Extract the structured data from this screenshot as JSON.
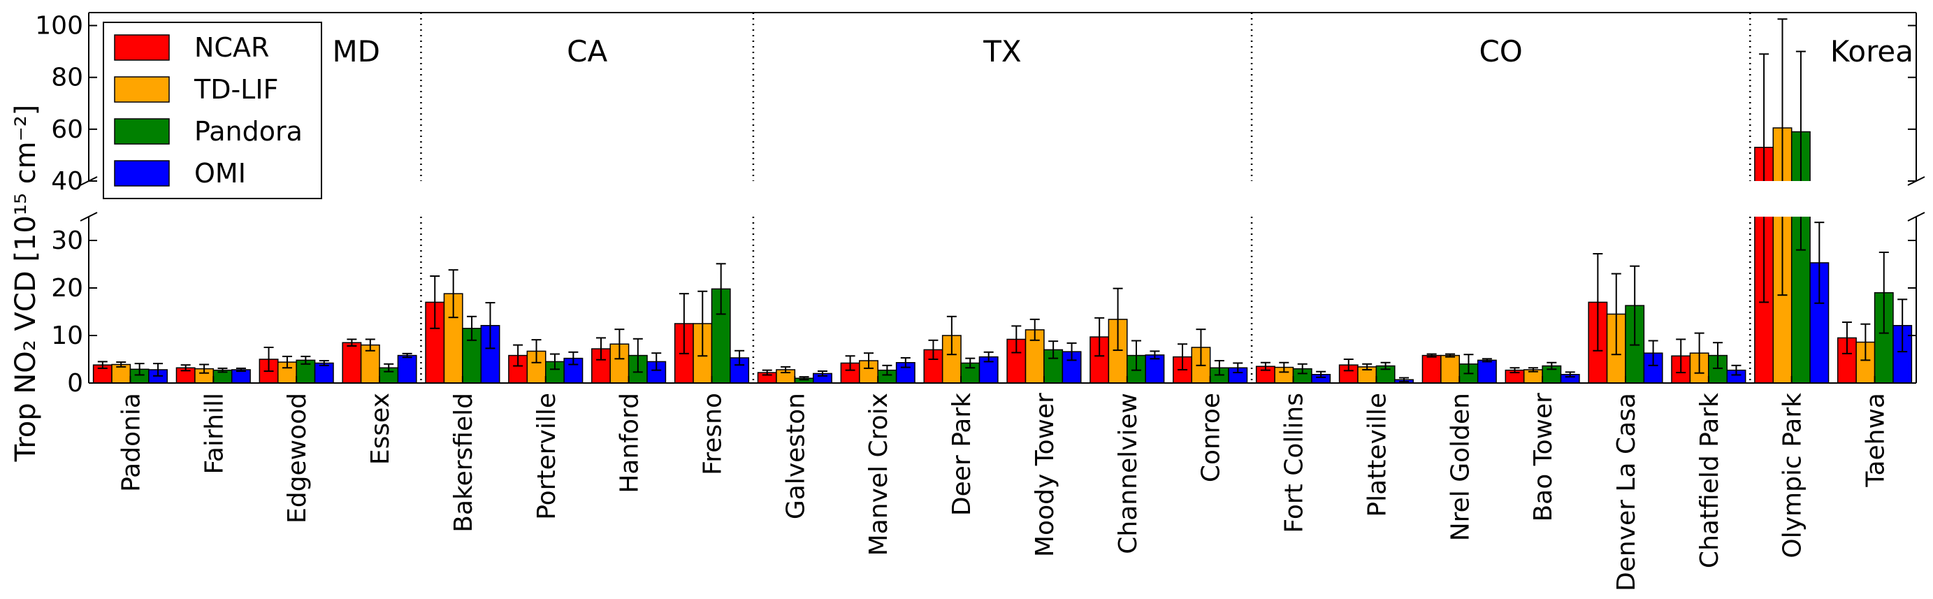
{
  "chart_data": {
    "type": "bar",
    "ylabel": "Trop NO₂ VCD [10¹⁵ cm⁻²]",
    "ylim_lower": [
      0,
      35
    ],
    "ylim_upper": [
      40,
      105
    ],
    "yticks_lower": [
      "0",
      "10",
      "20",
      "30"
    ],
    "yticks_upper": [
      "40",
      "60",
      "80",
      "100"
    ],
    "legend_position": "top-left",
    "regions": [
      {
        "label": "MD",
        "start": 0,
        "end": 4
      },
      {
        "label": "CA",
        "start": 4,
        "end": 8
      },
      {
        "label": "TX",
        "start": 8,
        "end": 14
      },
      {
        "label": "CO",
        "start": 14,
        "end": 20
      },
      {
        "label": "Korea",
        "start": 20,
        "end": 22
      }
    ],
    "categories": [
      "Padonia",
      "Fairhill",
      "Edgewood",
      "Essex",
      "Bakersfield",
      "Porterville",
      "Hanford",
      "Fresno",
      "Galveston",
      "Manvel Croix",
      "Deer Park",
      "Moody Tower",
      "Channelview",
      "Conroe",
      "Fort Collins",
      "Platteville",
      "Nrel Golden",
      "Bao Tower",
      "Denver La Casa",
      "Chatfield Park",
      "Olympic Park",
      "Taehwa"
    ],
    "series": [
      {
        "name": "NCAR",
        "color": "#ff0000",
        "values": [
          3.8,
          3.2,
          5.0,
          8.5,
          17.0,
          5.8,
          7.2,
          12.5,
          2.2,
          4.2,
          7.0,
          9.2,
          9.7,
          5.5,
          3.5,
          3.8,
          5.8,
          2.7,
          17.0,
          5.7,
          53.0,
          9.5
        ],
        "errors": [
          0.7,
          0.6,
          2.5,
          0.7,
          5.5,
          2.2,
          2.3,
          6.3,
          0.5,
          1.5,
          2.0,
          2.8,
          4.0,
          2.7,
          0.8,
          1.2,
          0.3,
          0.5,
          10.2,
          3.5,
          36.0,
          3.3
        ]
      },
      {
        "name": "TD-LIF",
        "color": "#ffa500",
        "values": [
          3.9,
          3.0,
          4.4,
          8.0,
          18.8,
          6.7,
          8.2,
          12.5,
          2.8,
          4.7,
          10.0,
          11.2,
          13.4,
          7.5,
          3.3,
          3.4,
          5.8,
          2.8,
          14.5,
          6.3,
          60.5,
          8.6
        ],
        "errors": [
          0.5,
          0.9,
          1.2,
          1.2,
          5.0,
          2.4,
          3.1,
          6.8,
          0.6,
          1.6,
          4.0,
          2.2,
          6.5,
          3.8,
          1.0,
          0.6,
          0.3,
          0.4,
          8.5,
          4.2,
          42.0,
          3.8
        ]
      },
      {
        "name": "Pandora",
        "color": "#008000",
        "values": [
          2.9,
          2.7,
          4.8,
          3.2,
          11.5,
          4.5,
          5.8,
          19.8,
          1.0,
          2.7,
          4.2,
          7.0,
          5.8,
          3.2,
          3.0,
          3.6,
          4.0,
          3.6,
          16.3,
          5.8,
          59.0,
          19.0
        ],
        "errors": [
          1.2,
          0.4,
          0.8,
          0.8,
          2.5,
          1.6,
          3.5,
          5.3,
          0.3,
          1.0,
          1.0,
          1.8,
          3.1,
          1.5,
          1.0,
          0.7,
          2.0,
          0.7,
          8.3,
          2.7,
          31.0,
          8.5
        ]
      },
      {
        "name": "OMI",
        "color": "#0000ff",
        "values": [
          2.8,
          2.8,
          4.2,
          5.8,
          12.1,
          5.2,
          4.5,
          5.3,
          2.0,
          4.3,
          5.5,
          6.6,
          5.9,
          3.2,
          1.8,
          0.7,
          4.8,
          1.8,
          6.3,
          2.7,
          25.3,
          12.1
        ],
        "errors": [
          1.3,
          0.3,
          0.5,
          0.4,
          4.8,
          1.3,
          1.8,
          1.5,
          0.5,
          1.0,
          1.0,
          1.8,
          0.8,
          1.0,
          0.6,
          0.4,
          0.3,
          0.5,
          2.6,
          1.0,
          8.5,
          5.5
        ]
      }
    ]
  }
}
